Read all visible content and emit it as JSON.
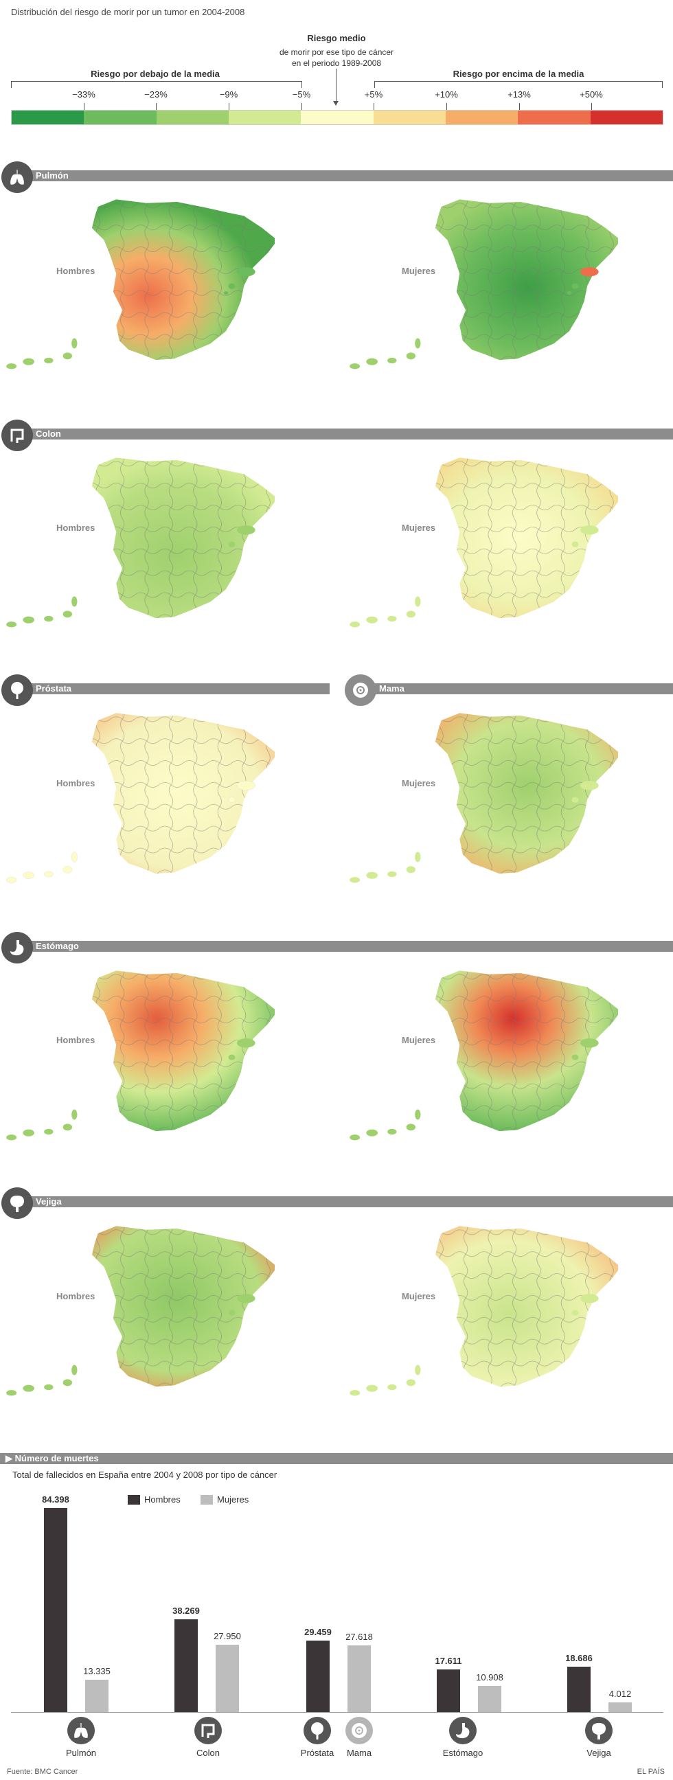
{
  "title": "Distribución del riesgo de morir por un tumor en 2004-2008",
  "legend": {
    "center_title": "Riesgo medio",
    "center_sub": [
      "de morir por ese tipo de cáncer",
      "en el periodo 1989-2008"
    ],
    "below_label": "Riesgo por debajo de la media",
    "above_label": "Riesgo por encima de la media",
    "ticks": [
      "−33%",
      "−23%",
      "−9%",
      "−5%",
      "+5%",
      "+10%",
      "+13%",
      "+50%"
    ],
    "colors": [
      "#2a9a48",
      "#6cbb5c",
      "#9fd06e",
      "#d2eb92",
      "#fdfcc8",
      "#f9dd92",
      "#f6ad68",
      "#ee6e4b",
      "#d5312c"
    ]
  },
  "sections": [
    {
      "name": "Pulmón",
      "icon": "lung-icon",
      "left_label": "Hombres",
      "right_label": "Mujeres"
    },
    {
      "name": "Colon",
      "icon": "colon-icon",
      "left_label": "Hombres",
      "right_label": "Mujeres"
    },
    {
      "name_left": "Próstata",
      "name_right": "Mama",
      "icon_left": "prostate-icon",
      "icon_right": "breast-icon",
      "left_label": "Hombres",
      "right_label": "Mujeres"
    },
    {
      "name": "Estómago",
      "icon": "stomach-icon",
      "left_label": "Hombres",
      "right_label": "Mujeres"
    },
    {
      "name": "Vejiga",
      "icon": "bladder-icon",
      "left_label": "Hombres",
      "right_label": "Mujeres"
    }
  ],
  "deaths": {
    "header": "Número de muertes",
    "subtitle": "Total de fallecidos en España entre 2004 y 2008 por tipo de cáncer",
    "legend_men": "Hombres",
    "legend_women": "Mujeres",
    "men_color": "#3b3537",
    "women_color": "#bdbdbd"
  },
  "chart_data": {
    "type": "bar",
    "title": "Total de fallecidos en España entre 2004 y 2008 por tipo de cáncer",
    "categories": [
      "Pulmón",
      "Colon",
      "Próstata / Mama",
      "Estómago",
      "Vejiga"
    ],
    "series": [
      {
        "name": "Hombres",
        "values": [
          84398,
          38269,
          29459,
          17611,
          18686
        ],
        "labels": [
          "84.398",
          "38.269",
          "29.459",
          "17.611",
          "18.686"
        ]
      },
      {
        "name": "Mujeres",
        "values": [
          13335,
          27950,
          27618,
          10908,
          4012
        ],
        "labels": [
          "13.335",
          "27.950",
          "27.618",
          "10.908",
          "4.012"
        ]
      }
    ],
    "category_labels": [
      "Pulmón",
      "Colon",
      "Próstata",
      "Mama",
      "Estómago",
      "Vejiga"
    ],
    "ylim": [
      0,
      84398
    ],
    "grid": false,
    "legend": "top-left"
  },
  "footer": {
    "source": "Fuente: BMC Cancer",
    "brand": "EL PAÍS"
  }
}
